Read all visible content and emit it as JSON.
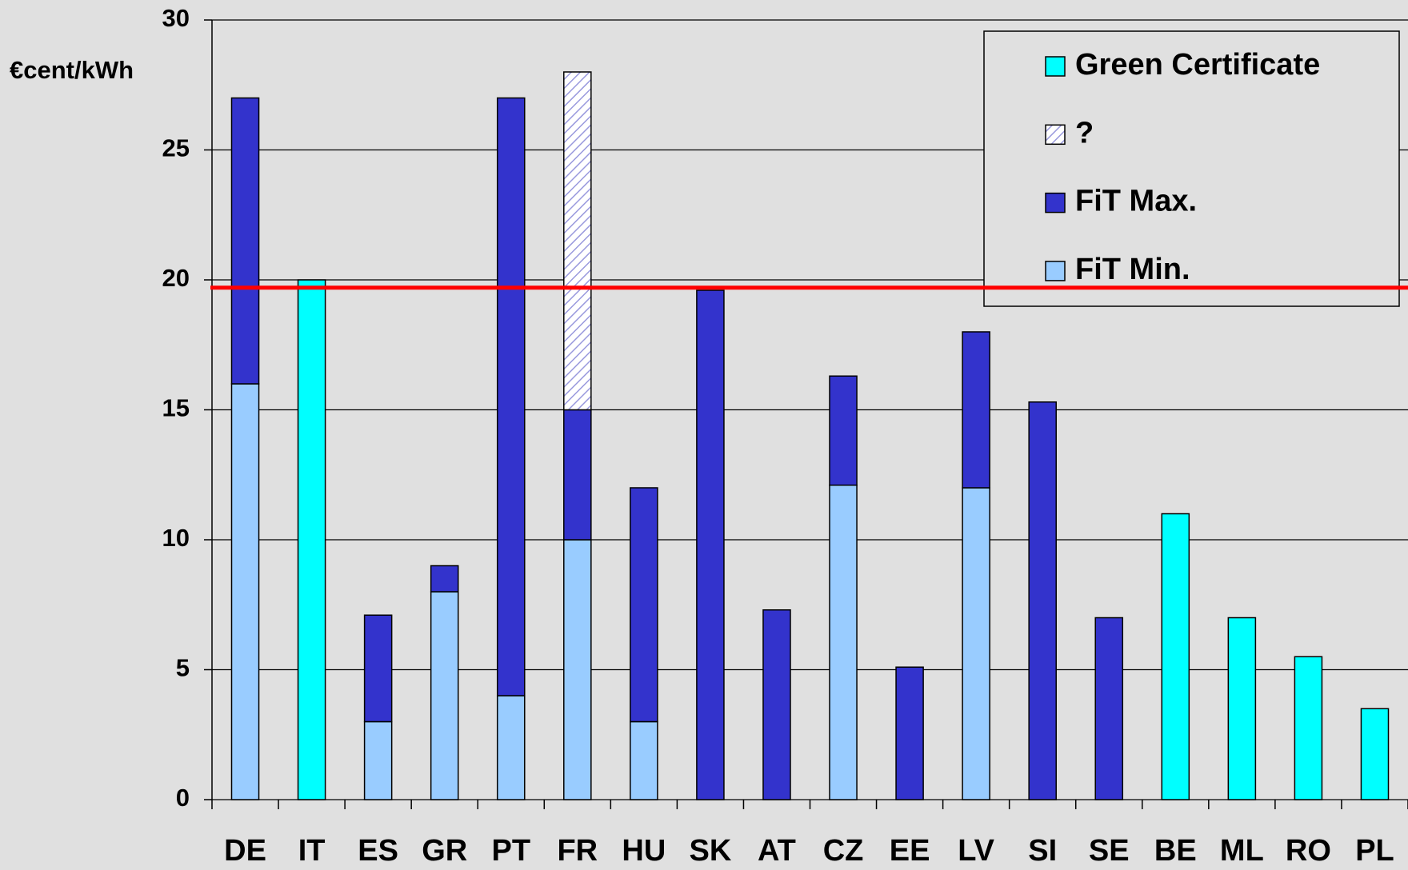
{
  "chart_data": {
    "type": "stacked_bar",
    "y_label": "€cent/kWh",
    "categories": [
      "DE",
      "IT",
      "ES",
      "GR",
      "PT",
      "FR",
      "HU",
      "SK",
      "AT",
      "CZ",
      "EE",
      "LV",
      "SI",
      "SE",
      "BE",
      "ML",
      "RO",
      "PL"
    ],
    "series": [
      {
        "name": "FiT Min.",
        "color": "#99ccff",
        "values": [
          16,
          null,
          3,
          8,
          4,
          10,
          3,
          null,
          null,
          12.1,
          null,
          12,
          null,
          null,
          null,
          null,
          null,
          null
        ]
      },
      {
        "name": "FiT Max.",
        "color": "#3333cc",
        "values": [
          11,
          null,
          4.1,
          1,
          23,
          5,
          9,
          19.6,
          7.3,
          4.2,
          5.1,
          6,
          15.3,
          7,
          null,
          null,
          null,
          null
        ]
      },
      {
        "name": "?",
        "color": "#9999dd",
        "hatch": true,
        "values": [
          null,
          null,
          null,
          null,
          null,
          13,
          null,
          null,
          null,
          null,
          null,
          null,
          null,
          null,
          null,
          null,
          null,
          null
        ]
      },
      {
        "name": "Green Certificate",
        "color": "#00ffff",
        "values": [
          null,
          20,
          null,
          null,
          null,
          null,
          null,
          null,
          null,
          null,
          null,
          null,
          null,
          null,
          11,
          7,
          5.5,
          3.5
        ]
      }
    ],
    "reference_line": 19.7,
    "reference_color": "#ff0000",
    "ylim": [
      0,
      30
    ],
    "yticks": [
      0,
      5,
      10,
      15,
      20,
      25,
      30
    ],
    "grid": true,
    "legend": "upper right"
  }
}
